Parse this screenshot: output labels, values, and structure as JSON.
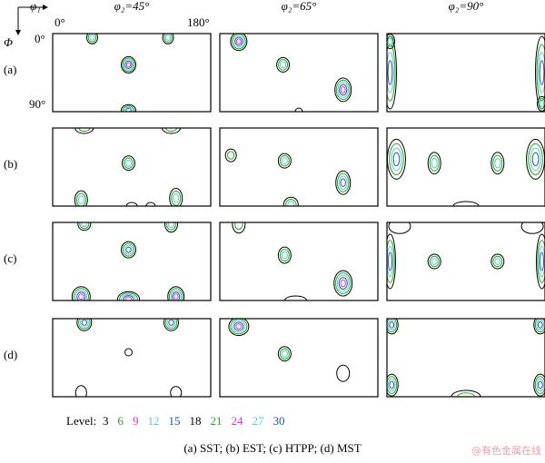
{
  "header": {
    "phi1": "φ₁",
    "Phi": "Φ",
    "phi1_start": "0°",
    "phi1_end": "180°",
    "Phi_start": "0°",
    "Phi_end": "90°"
  },
  "columns": [
    "φ₂=45°",
    "φ₂=65°",
    "φ₂=90°"
  ],
  "rows": [
    "(a)",
    "(b)",
    "(c)",
    "(d)"
  ],
  "legend": {
    "label": "Level:",
    "levels": [
      {
        "value": 3,
        "color": "#000000"
      },
      {
        "value": 6,
        "color": "#22aa22"
      },
      {
        "value": 9,
        "color": "#dd33cc"
      },
      {
        "value": 12,
        "color": "#55cccc"
      },
      {
        "value": 15,
        "color": "#2255bb"
      },
      {
        "value": 18,
        "color": "#000000"
      },
      {
        "value": 21,
        "color": "#22aa22"
      },
      {
        "value": 24,
        "color": "#dd33cc"
      },
      {
        "value": 27,
        "color": "#55cccc"
      },
      {
        "value": 30,
        "color": "#2255bb"
      }
    ]
  },
  "caption": "(a) SST; (b) EST; (c) HTPP; (d) MST",
  "watermark": "@有色金属在线"
}
